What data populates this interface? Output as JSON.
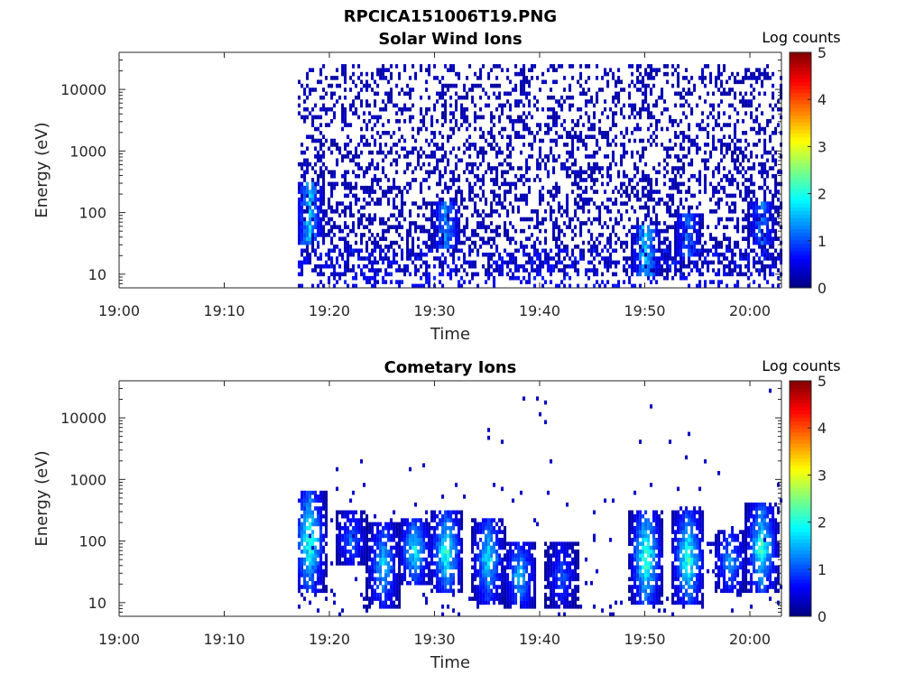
{
  "figure_title": "RPCICA151006T19.PNG",
  "colormap": [
    "#00007f",
    "#0000ff",
    "#007fff",
    "#00ffff",
    "#7fff7f",
    "#ffff00",
    "#ff7f00",
    "#ff0000",
    "#7f0000"
  ],
  "chart_data": [
    {
      "type": "heatmap",
      "title": "Solar Wind Ions",
      "xlabel": "Time",
      "ylabel": "Energy (eV)",
      "x_ticks": [
        "19:00",
        "19:10",
        "19:20",
        "19:30",
        "19:40",
        "19:50",
        "20:00"
      ],
      "y_ticks": [
        "10",
        "100",
        "1000",
        "10000"
      ],
      "y_scale": "log",
      "y_range_eV": [
        6,
        40000
      ],
      "x_range": [
        "19:00",
        "20:03"
      ],
      "data_start": "19:17",
      "colorbar": {
        "title": "Log counts",
        "ticks": [
          "0",
          "1",
          "2",
          "3",
          "4",
          "5"
        ],
        "range": [
          0,
          5
        ]
      },
      "background_level": 0.25,
      "background_energy_range_eV": [
        10,
        25000
      ],
      "low_energy_bursts": [
        {
          "time": "19:18",
          "energy_eV": [
            30,
            300
          ],
          "peak_log_counts": 1.9
        },
        {
          "time": "19:31",
          "energy_eV": [
            25,
            150
          ],
          "peak_log_counts": 1.6
        },
        {
          "time": "19:50",
          "energy_eV": [
            10,
            60
          ],
          "peak_log_counts": 2.0
        },
        {
          "time": "19:54",
          "energy_eV": [
            20,
            100
          ],
          "peak_log_counts": 1.4
        },
        {
          "time": "20:01",
          "energy_eV": [
            30,
            150
          ],
          "peak_log_counts": 1.4
        }
      ]
    },
    {
      "type": "heatmap",
      "title": "Cometary Ions",
      "xlabel": "Time",
      "ylabel": "Energy (eV)",
      "x_ticks": [
        "19:00",
        "19:10",
        "19:20",
        "19:30",
        "19:40",
        "19:50",
        "20:00"
      ],
      "y_ticks": [
        "10",
        "100",
        "1000",
        "10000"
      ],
      "y_scale": "log",
      "y_range_eV": [
        6,
        40000
      ],
      "x_range": [
        "19:00",
        "20:03"
      ],
      "data_start": "19:17",
      "colorbar": {
        "title": "Log counts",
        "ticks": [
          "0",
          "1",
          "2",
          "3",
          "4",
          "5"
        ],
        "range": [
          0,
          5
        ]
      },
      "bursts": [
        {
          "time": "19:18",
          "energy_eV": [
            15,
            700
          ],
          "peak_log_counts": 2.6
        },
        {
          "time": "19:22",
          "energy_eV": [
            40,
            300
          ],
          "peak_log_counts": 1.5
        },
        {
          "time": "19:25",
          "energy_eV": [
            8,
            200
          ],
          "peak_log_counts": 2.0
        },
        {
          "time": "19:28",
          "energy_eV": [
            20,
            250
          ],
          "peak_log_counts": 2.3
        },
        {
          "time": "19:31",
          "energy_eV": [
            15,
            300
          ],
          "peak_log_counts": 2.6
        },
        {
          "time": "19:35",
          "energy_eV": [
            10,
            250
          ],
          "peak_log_counts": 2.2
        },
        {
          "time": "19:38",
          "energy_eV": [
            8,
            100
          ],
          "peak_log_counts": 2.0
        },
        {
          "time": "19:42",
          "energy_eV": [
            8,
            100
          ],
          "peak_log_counts": 1.3
        },
        {
          "time": "19:50",
          "energy_eV": [
            10,
            300
          ],
          "peak_log_counts": 2.8
        },
        {
          "time": "19:54",
          "energy_eV": [
            10,
            300
          ],
          "peak_log_counts": 2.6
        },
        {
          "time": "19:58",
          "energy_eV": [
            15,
            150
          ],
          "peak_log_counts": 1.8
        },
        {
          "time": "20:01",
          "energy_eV": [
            15,
            400
          ],
          "peak_log_counts": 2.6
        }
      ]
    }
  ]
}
